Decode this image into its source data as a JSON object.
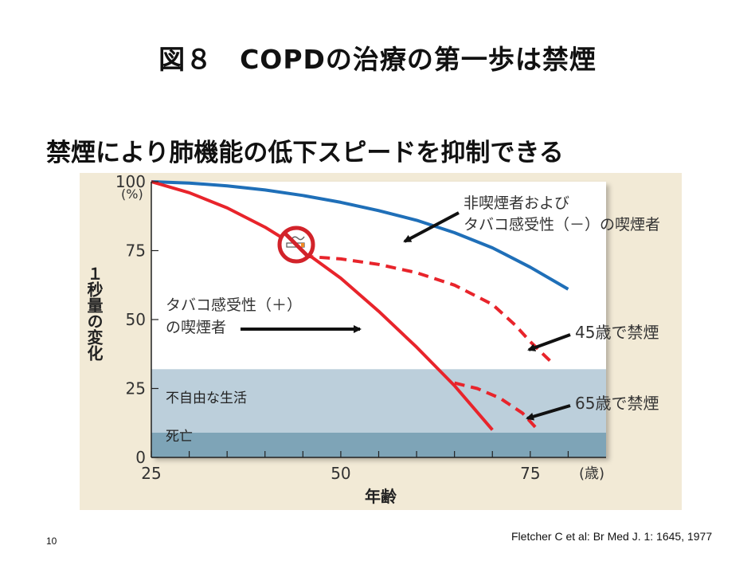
{
  "slide": {
    "title": "図８　COPDの治療の第一歩は禁煙",
    "subtitle": "禁煙により肺機能の低下スピードを抑制できる",
    "citation": "Fletcher C et al: Br Med J. 1: 1645, 1977",
    "page_number": "10"
  },
  "chart_data": {
    "type": "line",
    "title": "",
    "xlabel": "年齢",
    "ylabel": "１秒量の変化",
    "x_unit": "(歳)",
    "y_unit": "(%)",
    "xlim": [
      25,
      85
    ],
    "ylim": [
      0,
      100
    ],
    "x_ticks": [
      25,
      50,
      75
    ],
    "y_ticks": [
      0,
      25,
      50,
      75,
      100
    ],
    "grid": false,
    "bands": [
      {
        "label": "不自由な生活",
        "from": 9,
        "to": 32,
        "color": "#bccfdb"
      },
      {
        "label": "死亡",
        "from": 0,
        "to": 9,
        "color": "#7ea4b7"
      }
    ],
    "series": [
      {
        "name": "非喫煙者および タバコ感受性（－）の喫煙者",
        "color": "#1f6fb8",
        "style": "solid",
        "x": [
          25,
          30,
          35,
          40,
          45,
          50,
          55,
          60,
          65,
          70,
          75,
          80
        ],
        "y": [
          100,
          99.5,
          98.5,
          97,
          95,
          92.5,
          89.5,
          86,
          81.5,
          76,
          69,
          61
        ]
      },
      {
        "name": "タバコ感受性（＋） の喫煙者",
        "color": "#e8242b",
        "style": "solid",
        "x": [
          25,
          30,
          35,
          40,
          45,
          50,
          55,
          60,
          65,
          70
        ],
        "y": [
          100,
          96,
          90.5,
          83.5,
          75,
          65,
          53,
          40,
          26,
          10
        ]
      },
      {
        "name": "45歳で禁煙",
        "color": "#e8242b",
        "style": "dashed",
        "x": [
          45,
          50,
          55,
          60,
          65,
          70,
          73,
          75,
          78
        ],
        "y": [
          73,
          72,
          70,
          67,
          62.5,
          55.5,
          48,
          42,
          34
        ]
      },
      {
        "name": "65歳で禁煙",
        "color": "#e8242b",
        "style": "dashed",
        "x": [
          65,
          68,
          71,
          74,
          76
        ],
        "y": [
          27,
          25,
          21.5,
          16,
          10
        ]
      }
    ],
    "annotations": [
      {
        "text": "非喫煙者および",
        "line2": "タバコ感受性（－）の喫煙者"
      },
      {
        "text": "タバコ感受性（＋）",
        "line2": "の喫煙者"
      },
      {
        "text": "45歳で禁煙"
      },
      {
        "text": "65歳で禁煙"
      }
    ],
    "icons": [
      "no-smoking-icon"
    ]
  }
}
